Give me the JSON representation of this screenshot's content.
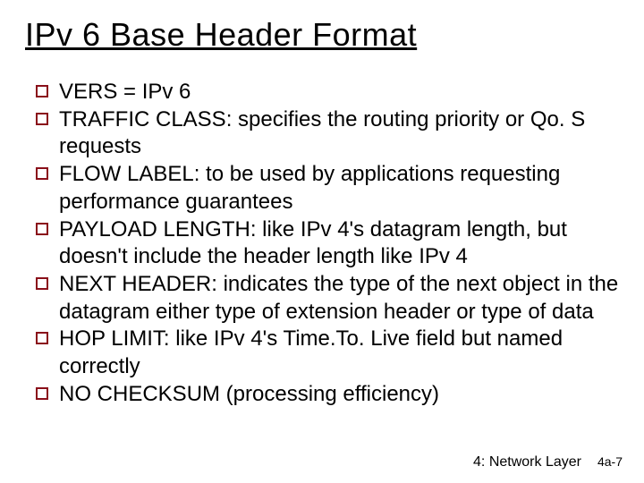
{
  "title": "IPv 6 Base Header Format",
  "bullets": [
    "VERS = IPv 6",
    "TRAFFIC CLASS: specifies the routing priority or Qo. S requests",
    "FLOW LABEL: to be used by applications requesting performance guarantees",
    "PAYLOAD LENGTH: like IPv 4's datagram length, but doesn't include the header length like IPv 4",
    "NEXT HEADER:  indicates the type of the next object in the datagram either type of extension header or type of data",
    "HOP LIMIT: like IPv 4's Time.To. Live field but named correctly",
    "NO CHECKSUM (processing efficiency)"
  ],
  "footer": {
    "section": "4: Network Layer",
    "page": "4a-7"
  },
  "styling": {
    "background_color": "#ffffff",
    "title_color": "#000000",
    "title_fontsize": 36,
    "title_underline": true,
    "bullet_marker_border_color": "#8a0f1a",
    "bullet_marker_fill_color": "#ffffff",
    "bullet_text_color": "#000000",
    "bullet_fontsize": 24,
    "footer_section_fontsize": 16,
    "footer_page_fontsize": 14,
    "font_family": "Comic Sans MS"
  }
}
